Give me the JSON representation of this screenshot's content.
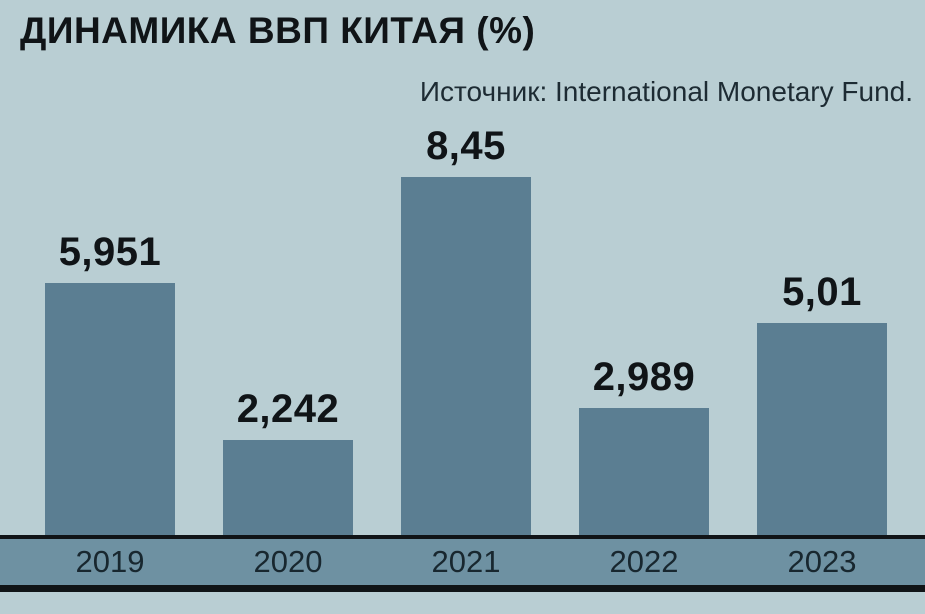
{
  "header": {
    "title": "ДИНАМИКА ВВП КИТАЯ (%)",
    "source": "Источник: International Monetary Fund."
  },
  "colors": {
    "background": "#b9ced3",
    "bar": "#5b7e92",
    "axis_band": "#6e91a2",
    "ink": "#101417",
    "source_text": "#1d2b33",
    "tick_text": "#18272f"
  },
  "chart_data": {
    "type": "bar",
    "title": "ДИНАМИКА ВВП КИТАЯ (%)",
    "source": "Источник: International Monetary Fund.",
    "categories": [
      "2019",
      "2020",
      "2021",
      "2022",
      "2023"
    ],
    "values": [
      5.951,
      2.242,
      8.45,
      2.989,
      5.01
    ],
    "value_labels": [
      "5,951",
      "2,242",
      "8,45",
      "2,989",
      "5,01"
    ],
    "xlabel": "",
    "ylabel": "",
    "ylim": [
      0,
      8.45
    ],
    "grid": false,
    "legend": false
  }
}
